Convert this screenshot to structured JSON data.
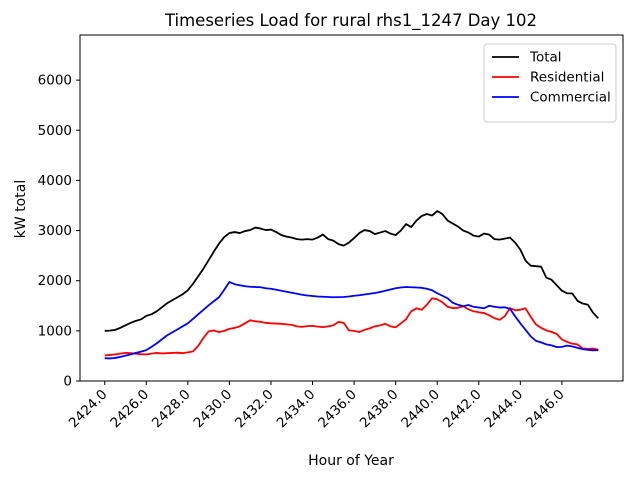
{
  "figure": {
    "title": "Timeseries Load for rural rhs1_1247  Day 102"
  },
  "chart_data": {
    "type": "line",
    "title": "Timeseries Load for rural rhs1_1247  Day 102",
    "xlabel": "Hour of Year",
    "ylabel": "kW total",
    "xlim": [
      2422.81,
      2448.94
    ],
    "ylim": [
      0,
      6900
    ],
    "grid": false,
    "x_ticks": [
      2424,
      2426,
      2428,
      2430,
      2432,
      2434,
      2436,
      2438,
      2440,
      2442,
      2444,
      2446
    ],
    "x_tick_labels": [
      "2424.0",
      "2426.0",
      "2428.0",
      "2430.0",
      "2432.0",
      "2434.0",
      "2436.0",
      "2438.0",
      "2440.0",
      "2442.0",
      "2444.0",
      "2446.0"
    ],
    "y_ticks": [
      0,
      1000,
      2000,
      3000,
      4000,
      5000,
      6000
    ],
    "y_tick_labels": [
      "0",
      "1000",
      "2000",
      "3000",
      "4000",
      "5000",
      "6000"
    ],
    "x_start": 2424.0,
    "x_step": 0.25,
    "n_points": 96,
    "legend": {
      "position": "upper right",
      "border_color": "#cccccc",
      "background": "#ffffff"
    },
    "series": [
      {
        "name": "Total",
        "color": "#000000",
        "values": [
          1000,
          1005,
          1020,
          1060,
          1110,
          1160,
          1200,
          1230,
          1300,
          1330,
          1390,
          1470,
          1550,
          1610,
          1670,
          1730,
          1810,
          1940,
          2090,
          2240,
          2410,
          2580,
          2740,
          2870,
          2950,
          2970,
          2950,
          2990,
          3010,
          3060,
          3040,
          3010,
          3020,
          2970,
          2910,
          2880,
          2860,
          2830,
          2820,
          2830,
          2820,
          2860,
          2920,
          2830,
          2800,
          2730,
          2700,
          2760,
          2850,
          2950,
          3010,
          2990,
          2930,
          2960,
          2990,
          2940,
          2910,
          3000,
          3130,
          3070,
          3200,
          3290,
          3330,
          3300,
          3390,
          3330,
          3200,
          3140,
          3080,
          3000,
          2960,
          2900,
          2880,
          2940,
          2920,
          2830,
          2820,
          2840,
          2860,
          2760,
          2620,
          2400,
          2300,
          2290,
          2280,
          2060,
          2020,
          1910,
          1800,
          1750,
          1745,
          1600,
          1545,
          1520,
          1360,
          1250
        ]
      },
      {
        "name": "Residential",
        "color": "#ff0000",
        "values": [
          510,
          520,
          530,
          545,
          560,
          555,
          545,
          535,
          530,
          545,
          560,
          550,
          555,
          560,
          565,
          555,
          570,
          590,
          700,
          860,
          990,
          1010,
          975,
          1000,
          1040,
          1060,
          1090,
          1150,
          1210,
          1190,
          1180,
          1160,
          1150,
          1145,
          1140,
          1130,
          1120,
          1090,
          1080,
          1095,
          1100,
          1085,
          1075,
          1090,
          1110,
          1180,
          1160,
          1010,
          1000,
          975,
          1020,
          1050,
          1090,
          1110,
          1140,
          1090,
          1070,
          1150,
          1230,
          1390,
          1450,
          1420,
          1520,
          1650,
          1630,
          1570,
          1480,
          1454,
          1460,
          1490,
          1430,
          1390,
          1370,
          1355,
          1310,
          1254,
          1220,
          1290,
          1454,
          1410,
          1420,
          1450,
          1280,
          1130,
          1060,
          1010,
          980,
          940,
          830,
          780,
          745,
          730,
          650,
          640,
          648,
          622
        ]
      },
      {
        "name": "Commercial",
        "color": "#0000ff",
        "values": [
          455,
          450,
          460,
          480,
          505,
          530,
          560,
          585,
          615,
          680,
          750,
          830,
          910,
          970,
          1030,
          1090,
          1150,
          1240,
          1330,
          1420,
          1510,
          1590,
          1670,
          1820,
          1975,
          1930,
          1910,
          1890,
          1880,
          1875,
          1870,
          1850,
          1840,
          1820,
          1800,
          1780,
          1760,
          1740,
          1720,
          1705,
          1695,
          1685,
          1680,
          1675,
          1670,
          1672,
          1675,
          1685,
          1700,
          1710,
          1725,
          1740,
          1755,
          1775,
          1800,
          1825,
          1850,
          1865,
          1875,
          1870,
          1865,
          1858,
          1840,
          1810,
          1750,
          1700,
          1650,
          1560,
          1520,
          1490,
          1515,
          1480,
          1465,
          1450,
          1500,
          1480,
          1465,
          1470,
          1440,
          1290,
          1150,
          1020,
          890,
          800,
          770,
          730,
          710,
          675,
          680,
          705,
          690,
          660,
          635,
          620,
          610,
          615
        ]
      }
    ]
  }
}
